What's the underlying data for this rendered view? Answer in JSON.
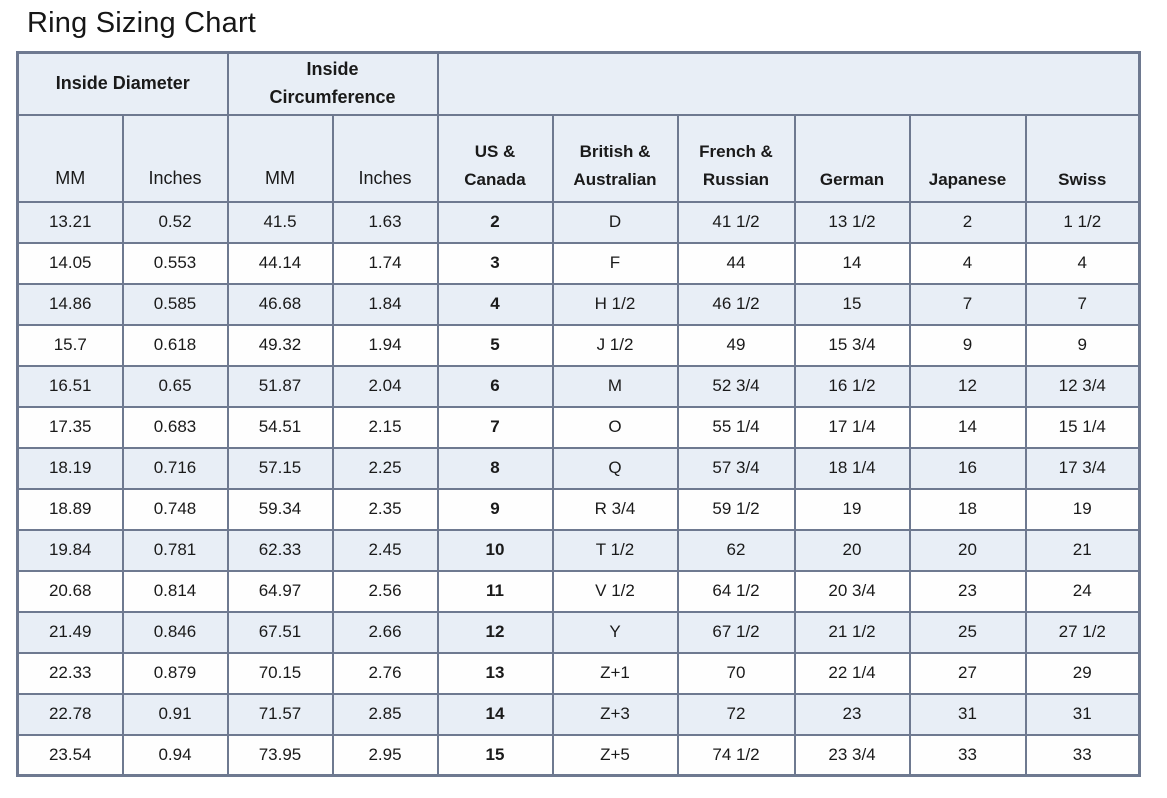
{
  "title": "Ring Sizing Chart",
  "colors": {
    "row_fill": "#e8eef6",
    "border": "#6e7990",
    "text": "#1a1a1a"
  },
  "table": {
    "group_headers": [
      {
        "label": "Inside Diameter",
        "colspan": 2
      },
      {
        "label": "Inside\nCircumference",
        "colspan": 2
      },
      {
        "label": "",
        "colspan": 6
      }
    ],
    "column_headers": [
      "MM",
      "Inches",
      "MM",
      "Inches",
      "US &\nCanada",
      "British &\nAustralian",
      "French &\nRussian",
      "German",
      "Japanese",
      "Swiss"
    ],
    "rows": [
      [
        "13.21",
        "0.52",
        "41.5",
        "1.63",
        "2",
        "D",
        "41 1/2",
        "13 1/2",
        "2",
        "1 1/2"
      ],
      [
        "14.05",
        "0.553",
        "44.14",
        "1.74",
        "3",
        "F",
        "44",
        "14",
        "4",
        "4"
      ],
      [
        "14.86",
        "0.585",
        "46.68",
        "1.84",
        "4",
        "H 1/2",
        "46 1/2",
        "15",
        "7",
        "7"
      ],
      [
        "15.7",
        "0.618",
        "49.32",
        "1.94",
        "5",
        "J 1/2",
        "49",
        "15 3/4",
        "9",
        "9"
      ],
      [
        "16.51",
        "0.65",
        "51.87",
        "2.04",
        "6",
        "M",
        "52 3/4",
        "16 1/2",
        "12",
        "12 3/4"
      ],
      [
        "17.35",
        "0.683",
        "54.51",
        "2.15",
        "7",
        "O",
        "55 1/4",
        "17 1/4",
        "14",
        "15 1/4"
      ],
      [
        "18.19",
        "0.716",
        "57.15",
        "2.25",
        "8",
        "Q",
        "57 3/4",
        "18 1/4",
        "16",
        "17 3/4"
      ],
      [
        "18.89",
        "0.748",
        "59.34",
        "2.35",
        "9",
        "R 3/4",
        "59 1/2",
        "19",
        "18",
        "19"
      ],
      [
        "19.84",
        "0.781",
        "62.33",
        "2.45",
        "10",
        "T 1/2",
        "62",
        "20",
        "20",
        "21"
      ],
      [
        "20.68",
        "0.814",
        "64.97",
        "2.56",
        "11",
        "V 1/2",
        "64 1/2",
        "20 3/4",
        "23",
        "24"
      ],
      [
        "21.49",
        "0.846",
        "67.51",
        "2.66",
        "12",
        "Y",
        "67 1/2",
        "21 1/2",
        "25",
        "27 1/2"
      ],
      [
        "22.33",
        "0.879",
        "70.15",
        "2.76",
        "13",
        "Z+1",
        "70",
        "22 1/4",
        "27",
        "29"
      ],
      [
        "22.78",
        "0.91",
        "71.57",
        "2.85",
        "14",
        "Z+3",
        "72",
        "23",
        "31",
        "31"
      ],
      [
        "23.54",
        "0.94",
        "73.95",
        "2.95",
        "15",
        "Z+5",
        "74 1/2",
        "23 3/4",
        "33",
        "33"
      ]
    ]
  }
}
